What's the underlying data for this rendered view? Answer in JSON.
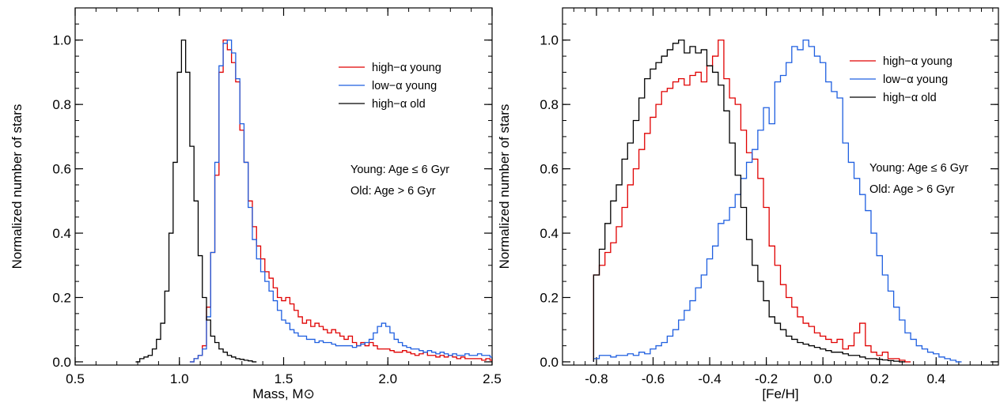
{
  "chart_data": [
    {
      "type": "line",
      "style": "step-histogram",
      "xlabel": "Mass, M⊙",
      "ylabel": "Normalized number of stars",
      "xlim": [
        0.5,
        2.5
      ],
      "ylim": [
        -0.01,
        1.1
      ],
      "xticks": [
        0.5,
        1.0,
        1.5,
        2.0,
        2.5
      ],
      "xtick_labels": [
        "0.5",
        "1.0",
        "1.5",
        "2.0",
        "2.5"
      ],
      "yticks": [
        0.0,
        0.2,
        0.4,
        0.6,
        0.8,
        1.0
      ],
      "ytick_labels": [
        "0.0",
        "0.2",
        "0.4",
        "0.6",
        "0.8",
        "1.0"
      ],
      "grid": false,
      "legend_position": "top-right",
      "notes": [
        "Young: Age ≤ 6 Gyr",
        "Old: Age > 6 Gyr"
      ],
      "series": [
        {
          "name": "high−α young",
          "color": "#e00000",
          "x": [
            1.06,
            1.08,
            1.1,
            1.12,
            1.14,
            1.16,
            1.18,
            1.2,
            1.22,
            1.24,
            1.26,
            1.28,
            1.3,
            1.32,
            1.34,
            1.36,
            1.38,
            1.4,
            1.42,
            1.44,
            1.46,
            1.48,
            1.5,
            1.52,
            1.54,
            1.56,
            1.58,
            1.6,
            1.62,
            1.64,
            1.66,
            1.68,
            1.7,
            1.72,
            1.74,
            1.76,
            1.78,
            1.8,
            1.82,
            1.84,
            1.86,
            1.88,
            1.9,
            1.92,
            1.94,
            1.96,
            1.98,
            2.0,
            2.02,
            2.04,
            2.06,
            2.08,
            2.1,
            2.12,
            2.14,
            2.16,
            2.18,
            2.2,
            2.22,
            2.24,
            2.26,
            2.28,
            2.3,
            2.32,
            2.34,
            2.36,
            2.38,
            2.4,
            2.42,
            2.44,
            2.46,
            2.48,
            2.5
          ],
          "y": [
            0.0,
            0.01,
            0.02,
            0.05,
            0.17,
            0.34,
            0.58,
            0.9,
            1.0,
            0.97,
            0.93,
            0.87,
            0.72,
            0.62,
            0.5,
            0.42,
            0.36,
            0.32,
            0.28,
            0.26,
            0.23,
            0.2,
            0.19,
            0.2,
            0.18,
            0.16,
            0.14,
            0.12,
            0.13,
            0.11,
            0.12,
            0.11,
            0.1,
            0.09,
            0.1,
            0.09,
            0.08,
            0.07,
            0.08,
            0.06,
            0.05,
            0.06,
            0.05,
            0.06,
            0.05,
            0.04,
            0.04,
            0.04,
            0.035,
            0.03,
            0.03,
            0.035,
            0.03,
            0.025,
            0.02,
            0.025,
            0.03,
            0.02,
            0.02,
            0.015,
            0.02,
            0.015,
            0.02,
            0.015,
            0.01,
            0.015,
            0.01,
            0.01,
            0.01,
            0.01,
            0.005,
            0.01,
            0.005
          ]
        },
        {
          "name": "low−α young",
          "color": "#1f5fe0",
          "x": [
            1.06,
            1.08,
            1.1,
            1.12,
            1.14,
            1.16,
            1.18,
            1.2,
            1.22,
            1.24,
            1.26,
            1.28,
            1.3,
            1.32,
            1.34,
            1.36,
            1.38,
            1.4,
            1.42,
            1.44,
            1.46,
            1.48,
            1.5,
            1.52,
            1.54,
            1.56,
            1.58,
            1.6,
            1.62,
            1.64,
            1.66,
            1.68,
            1.7,
            1.72,
            1.74,
            1.76,
            1.78,
            1.8,
            1.82,
            1.84,
            1.86,
            1.88,
            1.9,
            1.92,
            1.94,
            1.96,
            1.98,
            2.0,
            2.02,
            2.04,
            2.06,
            2.08,
            2.1,
            2.12,
            2.14,
            2.16,
            2.18,
            2.2,
            2.22,
            2.24,
            2.26,
            2.28,
            2.3,
            2.32,
            2.34,
            2.36,
            2.38,
            2.4,
            2.42,
            2.44,
            2.46,
            2.48,
            2.5
          ],
          "y": [
            0.0,
            0.01,
            0.02,
            0.04,
            0.14,
            0.34,
            0.62,
            0.92,
            0.99,
            1.0,
            0.96,
            0.88,
            0.74,
            0.62,
            0.48,
            0.38,
            0.32,
            0.28,
            0.25,
            0.22,
            0.19,
            0.16,
            0.13,
            0.12,
            0.1,
            0.09,
            0.08,
            0.08,
            0.07,
            0.07,
            0.06,
            0.065,
            0.06,
            0.06,
            0.055,
            0.05,
            0.05,
            0.05,
            0.05,
            0.045,
            0.05,
            0.055,
            0.06,
            0.07,
            0.09,
            0.11,
            0.12,
            0.11,
            0.09,
            0.07,
            0.06,
            0.05,
            0.045,
            0.04,
            0.04,
            0.035,
            0.03,
            0.035,
            0.03,
            0.025,
            0.03,
            0.025,
            0.02,
            0.025,
            0.02,
            0.02,
            0.025,
            0.02,
            0.02,
            0.025,
            0.02,
            0.02,
            0.015
          ]
        },
        {
          "name": "high−α old",
          "color": "#000000",
          "x": [
            0.8,
            0.82,
            0.84,
            0.86,
            0.88,
            0.9,
            0.92,
            0.94,
            0.96,
            0.98,
            1.0,
            1.02,
            1.04,
            1.06,
            1.08,
            1.1,
            1.12,
            1.14,
            1.16,
            1.18,
            1.2,
            1.22,
            1.24,
            1.26,
            1.28,
            1.3,
            1.32,
            1.34,
            1.36
          ],
          "y": [
            0.0,
            0.01,
            0.015,
            0.02,
            0.04,
            0.07,
            0.12,
            0.22,
            0.4,
            0.62,
            0.9,
            1.0,
            0.9,
            0.67,
            0.5,
            0.33,
            0.2,
            0.13,
            0.08,
            0.06,
            0.04,
            0.03,
            0.02,
            0.015,
            0.01,
            0.008,
            0.005,
            0.003,
            0.0
          ]
        }
      ]
    },
    {
      "type": "line",
      "style": "step-histogram",
      "xlabel": "[Fe/H]",
      "ylabel": "Normalized number of stars",
      "xlim": [
        -0.92,
        0.62
      ],
      "ylim": [
        -0.01,
        1.1
      ],
      "xticks": [
        -0.8,
        -0.6,
        -0.4,
        -0.2,
        0.0,
        0.2,
        0.4
      ],
      "xtick_labels": [
        "-0.8",
        "-0.6",
        "-0.4",
        "-0.2",
        "0.0",
        "0.2",
        "0.4"
      ],
      "yticks": [
        0.0,
        0.2,
        0.4,
        0.6,
        0.8,
        1.0
      ],
      "ytick_labels": [
        "0.0",
        "0.2",
        "0.4",
        "0.6",
        "0.8",
        "1.0"
      ],
      "grid": false,
      "legend_position": "top-right",
      "notes": [
        "Young: Age ≤ 6 Gyr",
        "Old: Age > 6 Gyr"
      ],
      "series": [
        {
          "name": "high−α young",
          "color": "#e00000",
          "x": [
            -0.8,
            -0.78,
            -0.76,
            -0.74,
            -0.72,
            -0.7,
            -0.68,
            -0.66,
            -0.64,
            -0.62,
            -0.6,
            -0.58,
            -0.56,
            -0.54,
            -0.52,
            -0.5,
            -0.48,
            -0.46,
            -0.44,
            -0.42,
            -0.4,
            -0.38,
            -0.36,
            -0.34,
            -0.32,
            -0.3,
            -0.28,
            -0.26,
            -0.24,
            -0.22,
            -0.2,
            -0.18,
            -0.16,
            -0.14,
            -0.12,
            -0.1,
            -0.08,
            -0.06,
            -0.04,
            -0.02,
            0.0,
            0.02,
            0.04,
            0.06,
            0.08,
            0.1,
            0.12,
            0.14,
            0.16,
            0.18,
            0.2,
            0.22,
            0.24,
            0.26,
            0.28,
            0.3
          ],
          "y": [
            0.27,
            0.3,
            0.34,
            0.37,
            0.42,
            0.48,
            0.55,
            0.6,
            0.66,
            0.71,
            0.76,
            0.8,
            0.84,
            0.85,
            0.87,
            0.88,
            0.86,
            0.89,
            0.9,
            0.87,
            0.92,
            0.95,
            1.0,
            0.88,
            0.82,
            0.8,
            0.72,
            0.65,
            0.63,
            0.57,
            0.48,
            0.36,
            0.3,
            0.24,
            0.2,
            0.17,
            0.14,
            0.12,
            0.11,
            0.09,
            0.08,
            0.07,
            0.06,
            0.07,
            0.04,
            0.05,
            0.09,
            0.12,
            0.05,
            0.03,
            0.02,
            0.03,
            0.01,
            0.01,
            0.005,
            0.0
          ]
        },
        {
          "name": "low−α young",
          "color": "#1f5fe0",
          "x": [
            -0.8,
            -0.78,
            -0.76,
            -0.74,
            -0.72,
            -0.7,
            -0.68,
            -0.66,
            -0.64,
            -0.62,
            -0.6,
            -0.58,
            -0.56,
            -0.54,
            -0.52,
            -0.5,
            -0.48,
            -0.46,
            -0.44,
            -0.42,
            -0.4,
            -0.38,
            -0.36,
            -0.34,
            -0.32,
            -0.3,
            -0.28,
            -0.26,
            -0.24,
            -0.22,
            -0.2,
            -0.18,
            -0.16,
            -0.14,
            -0.12,
            -0.1,
            -0.08,
            -0.06,
            -0.04,
            -0.02,
            0.0,
            0.02,
            0.04,
            0.06,
            0.08,
            0.1,
            0.12,
            0.14,
            0.16,
            0.18,
            0.2,
            0.22,
            0.24,
            0.26,
            0.28,
            0.3,
            0.32,
            0.34,
            0.36,
            0.38,
            0.4,
            0.42,
            0.44,
            0.46,
            0.48
          ],
          "y": [
            0.01,
            0.02,
            0.02,
            0.015,
            0.02,
            0.02,
            0.025,
            0.02,
            0.03,
            0.025,
            0.04,
            0.05,
            0.06,
            0.08,
            0.1,
            0.13,
            0.16,
            0.19,
            0.23,
            0.27,
            0.32,
            0.36,
            0.43,
            0.44,
            0.48,
            0.52,
            0.57,
            0.62,
            0.66,
            0.72,
            0.79,
            0.74,
            0.87,
            0.89,
            0.93,
            0.98,
            0.97,
            1.0,
            0.98,
            0.95,
            0.93,
            0.87,
            0.84,
            0.82,
            0.68,
            0.62,
            0.57,
            0.52,
            0.47,
            0.4,
            0.33,
            0.27,
            0.22,
            0.17,
            0.13,
            0.09,
            0.07,
            0.05,
            0.04,
            0.03,
            0.025,
            0.015,
            0.01,
            0.005,
            0.0
          ]
        },
        {
          "name": "high−α old",
          "color": "#000000",
          "x": [
            -0.8,
            -0.78,
            -0.76,
            -0.74,
            -0.72,
            -0.7,
            -0.68,
            -0.66,
            -0.64,
            -0.62,
            -0.6,
            -0.58,
            -0.56,
            -0.54,
            -0.52,
            -0.5,
            -0.48,
            -0.46,
            -0.44,
            -0.42,
            -0.4,
            -0.38,
            -0.36,
            -0.34,
            -0.32,
            -0.3,
            -0.28,
            -0.26,
            -0.24,
            -0.22,
            -0.2,
            -0.18,
            -0.16,
            -0.14,
            -0.12,
            -0.1,
            -0.08,
            -0.06,
            -0.04,
            -0.02,
            0.0,
            0.02,
            0.04,
            0.06,
            0.08,
            0.1,
            0.12,
            0.14,
            0.16,
            0.18,
            0.2,
            0.22,
            0.24,
            0.26,
            0.28
          ],
          "y": [
            0.27,
            0.35,
            0.43,
            0.5,
            0.55,
            0.63,
            0.68,
            0.75,
            0.82,
            0.88,
            0.91,
            0.93,
            0.95,
            0.97,
            0.99,
            1.0,
            0.96,
            0.98,
            0.96,
            0.97,
            0.92,
            0.9,
            0.86,
            0.78,
            0.68,
            0.58,
            0.48,
            0.38,
            0.3,
            0.25,
            0.19,
            0.14,
            0.12,
            0.1,
            0.08,
            0.07,
            0.06,
            0.055,
            0.05,
            0.045,
            0.04,
            0.035,
            0.03,
            0.03,
            0.025,
            0.02,
            0.02,
            0.015,
            0.01,
            0.01,
            0.008,
            0.006,
            0.004,
            0.002,
            0.0
          ]
        }
      ]
    }
  ]
}
